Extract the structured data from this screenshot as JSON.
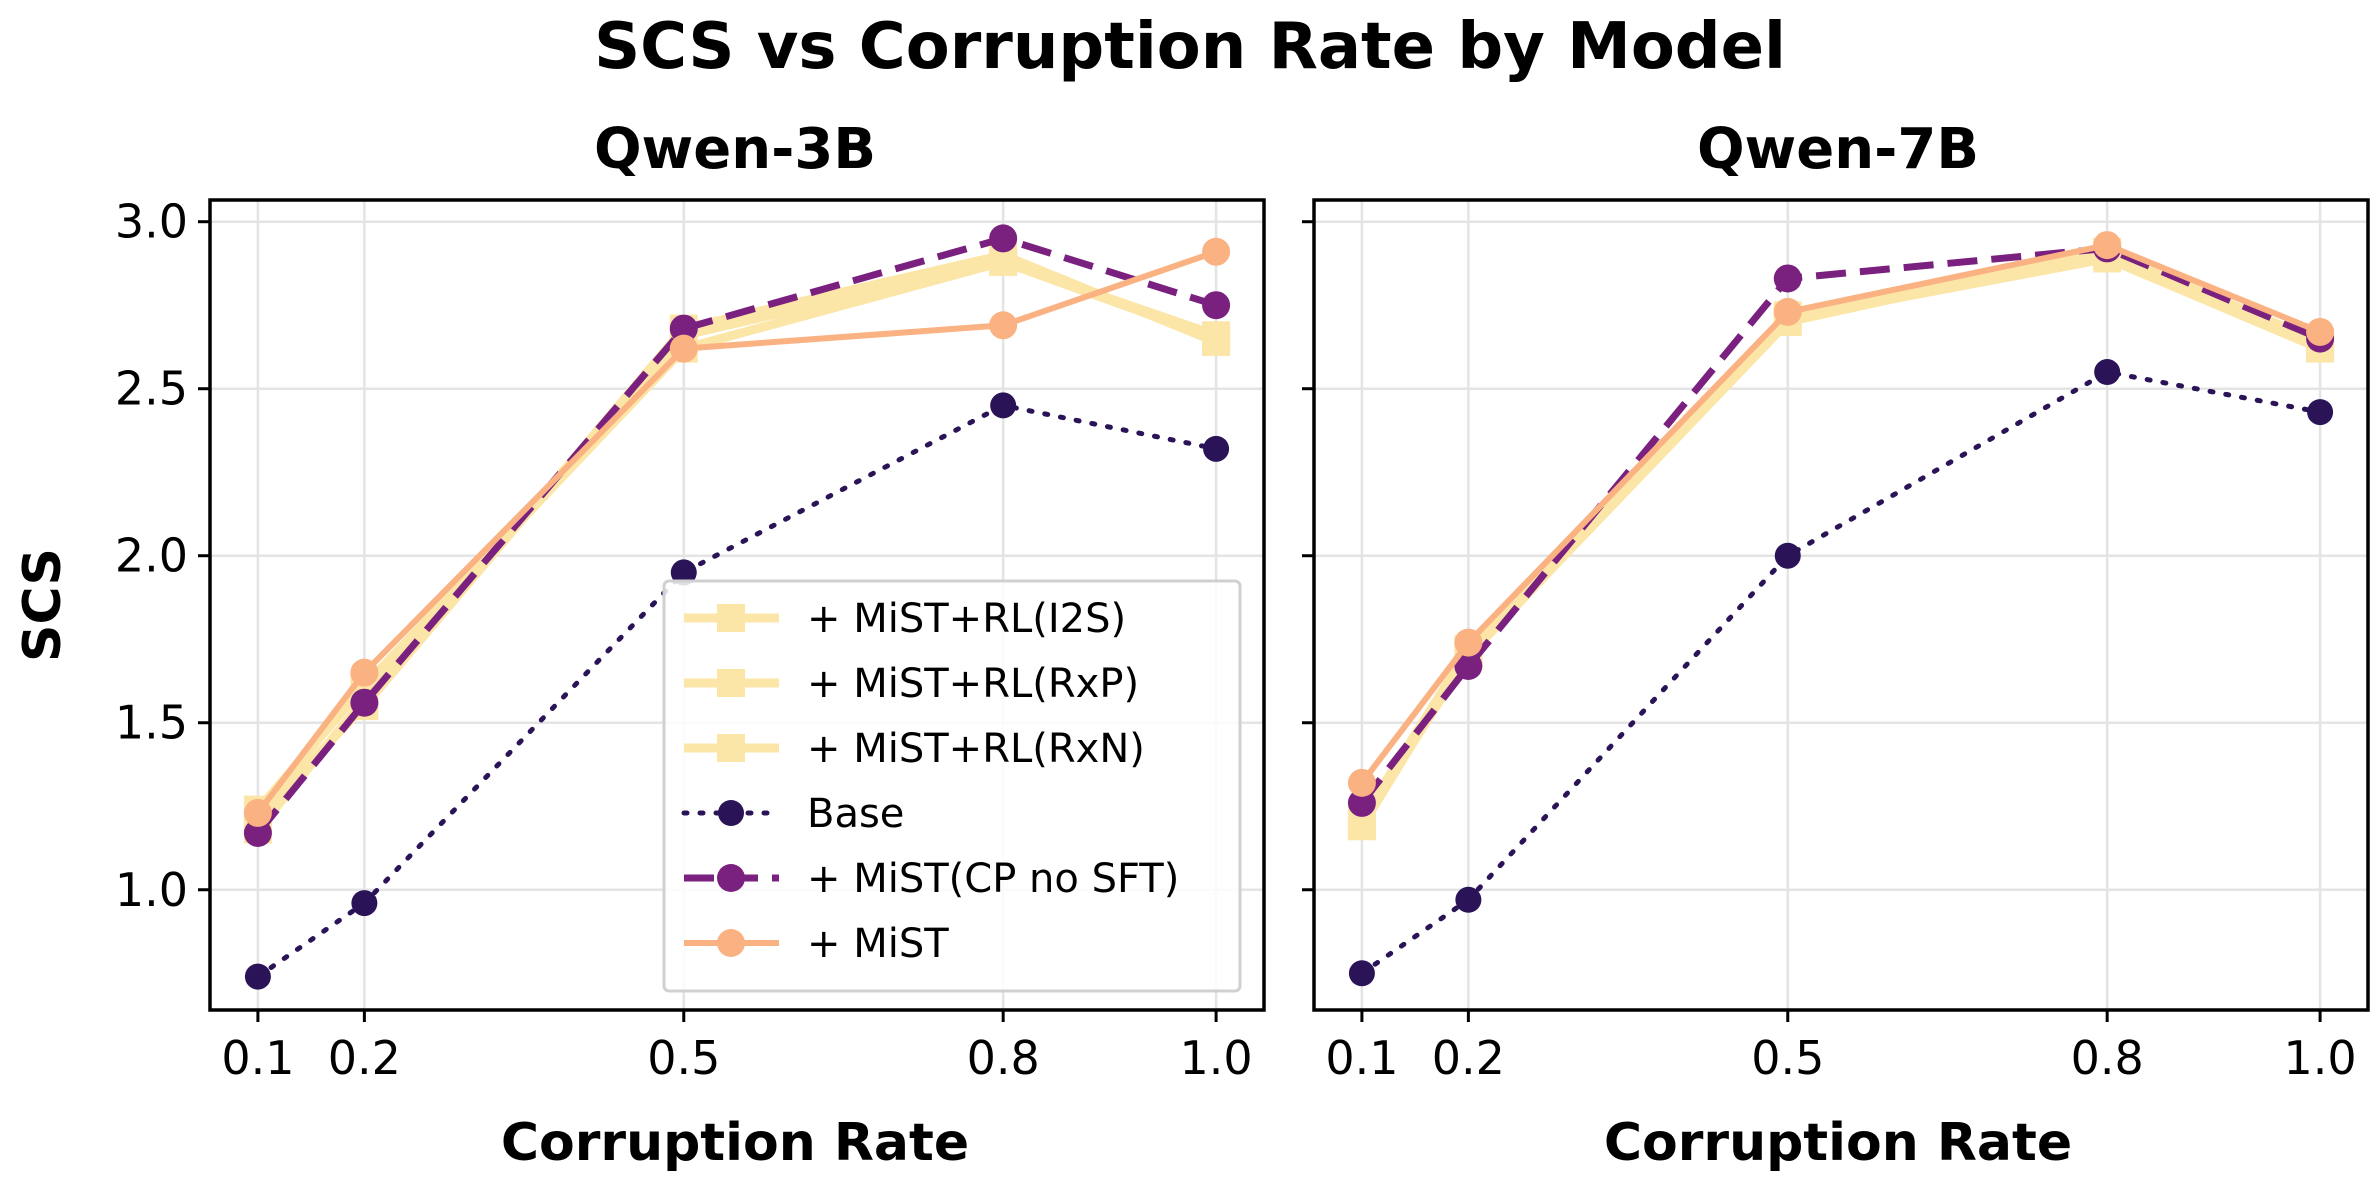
{
  "figure": {
    "title": "SCS vs Corruption Rate by Model"
  },
  "colors": {
    "rl": "#fbe6a8",
    "base": "#2a1457",
    "cp": "#7a2180",
    "mist": "#fbb282",
    "grid": "#e4e4e4"
  },
  "chart_data": [
    {
      "type": "line",
      "title": "Qwen-3B",
      "xlabel": "Corruption Rate",
      "ylabel": "SCS",
      "x": [
        0.1,
        0.2,
        0.5,
        0.8,
        1.0
      ],
      "x_tick_labels": [
        "0.1",
        "0.2",
        "0.5",
        "0.8",
        "1.0"
      ],
      "y_ticks": [
        1.0,
        1.5,
        2.0,
        2.5,
        3.0
      ],
      "y_tick_labels": [
        "1.0",
        "1.5",
        "2.0",
        "2.5",
        "3.0"
      ],
      "xlim": [
        0.055,
        1.045
      ],
      "ylim": [
        0.64,
        3.065
      ],
      "grid": true,
      "legend": "lower-right",
      "series": [
        {
          "name": "+ MiST+RL(I2S)",
          "style": "rl",
          "values": [
            1.22,
            1.55,
            2.68,
            2.9,
            2.64
          ]
        },
        {
          "name": "+ MiST+RL(RxP)",
          "style": "rl",
          "values": [
            1.18,
            1.57,
            2.66,
            2.88,
            2.65
          ]
        },
        {
          "name": "+ MiST+RL(RxN)",
          "style": "rl",
          "values": [
            1.24,
            1.61,
            2.62,
            2.88,
            2.66
          ]
        },
        {
          "name": "Base",
          "style": "base",
          "values": [
            0.74,
            0.96,
            1.95,
            2.45,
            2.32
          ]
        },
        {
          "name": "+ MiST(CP no SFT)",
          "style": "cp",
          "values": [
            1.17,
            1.56,
            2.68,
            2.95,
            2.75
          ]
        },
        {
          "name": "+ MiST",
          "style": "mist",
          "values": [
            1.23,
            1.65,
            2.62,
            2.69,
            2.91
          ]
        }
      ]
    },
    {
      "type": "line",
      "title": "Qwen-7B",
      "xlabel": "Corruption Rate",
      "ylabel": "",
      "x": [
        0.1,
        0.2,
        0.5,
        0.8,
        1.0
      ],
      "x_tick_labels": [
        "0.1",
        "0.2",
        "0.5",
        "0.8",
        "1.0"
      ],
      "y_ticks": [
        1.0,
        1.5,
        2.0,
        2.5,
        3.0
      ],
      "y_tick_labels": [],
      "xlim": [
        0.055,
        1.045
      ],
      "ylim": [
        0.64,
        3.065
      ],
      "grid": true,
      "legend": "none",
      "series": [
        {
          "name": "+ MiST+RL(I2S)",
          "style": "rl",
          "values": [
            1.19,
            1.71,
            2.71,
            2.89,
            2.62
          ]
        },
        {
          "name": "+ MiST+RL(RxP)",
          "style": "rl",
          "values": [
            1.21,
            1.72,
            2.72,
            2.9,
            2.63
          ]
        },
        {
          "name": "+ MiST+RL(RxN)",
          "style": "rl",
          "values": [
            1.2,
            1.7,
            2.7,
            2.91,
            2.64
          ]
        },
        {
          "name": "Base",
          "style": "base",
          "values": [
            0.75,
            0.97,
            2.0,
            2.55,
            2.43
          ]
        },
        {
          "name": "+ MiST(CP no SFT)",
          "style": "cp",
          "values": [
            1.26,
            1.67,
            2.83,
            2.92,
            2.65
          ]
        },
        {
          "name": "+ MiST",
          "style": "mist",
          "values": [
            1.32,
            1.74,
            2.73,
            2.93,
            2.67
          ]
        }
      ]
    }
  ]
}
